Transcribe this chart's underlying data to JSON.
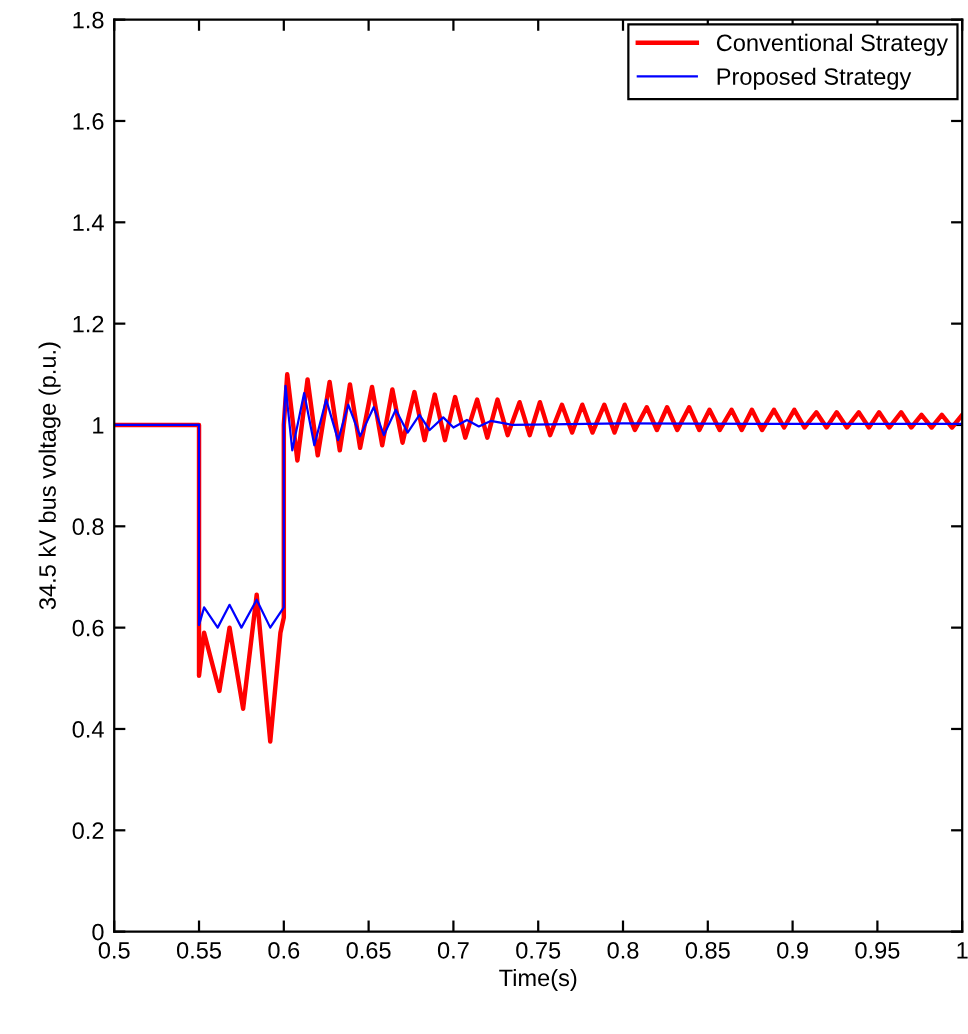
{
  "chart_data": {
    "type": "line",
    "xlabel": "Time(s)",
    "ylabel": "34.5 kV bus voltage (p.u.)",
    "xlim": [
      0.5,
      1
    ],
    "ylim": [
      0,
      1.8
    ],
    "xticks": [
      0.5,
      0.55,
      0.6,
      0.65,
      0.7,
      0.75,
      0.8,
      0.85,
      0.9,
      0.95,
      1
    ],
    "yticks": [
      0,
      0.2,
      0.4,
      0.6,
      0.8,
      1,
      1.2,
      1.4,
      1.6,
      1.8
    ],
    "grid": false,
    "legend": "top right",
    "line_style": "solid",
    "marker": "none",
    "series": [
      {
        "name": "Conventional Strategy",
        "color": "#ff0000",
        "x": [
          0.5,
          0.55,
          0.55,
          0.553,
          0.562,
          0.568,
          0.576,
          0.584,
          0.592,
          0.598,
          0.6,
          0.6,
          0.602,
          0.608,
          0.614,
          0.62,
          0.627,
          0.633,
          0.639,
          0.645,
          0.652,
          0.658,
          0.664,
          0.67,
          0.677,
          0.683,
          0.689,
          0.695,
          0.701,
          0.707,
          0.714,
          0.72,
          0.726,
          0.732,
          0.739,
          0.745,
          0.751,
          0.757,
          0.764,
          0.77,
          0.776,
          0.782,
          0.789,
          0.795,
          0.801,
          0.807,
          0.814,
          0.82,
          0.826,
          0.832,
          0.839,
          0.845,
          0.851,
          0.857,
          0.864,
          0.87,
          0.876,
          0.882,
          0.889,
          0.895,
          0.901,
          0.907,
          0.914,
          0.92,
          0.926,
          0.932,
          0.939,
          0.945,
          0.951,
          0.957,
          0.964,
          0.97,
          0.976,
          0.982,
          0.988,
          0.994,
          1.0
        ],
        "values": [
          1,
          1,
          0.505,
          0.59,
          0.475,
          0.6,
          0.44,
          0.665,
          0.375,
          0.59,
          0.62,
          1.0,
          1.1,
          0.93,
          1.09,
          0.94,
          1.085,
          0.95,
          1.08,
          0.955,
          1.075,
          0.96,
          1.07,
          0.965,
          1.065,
          0.97,
          1.06,
          0.97,
          1.055,
          0.975,
          1.05,
          0.975,
          1.05,
          0.98,
          1.045,
          0.98,
          1.045,
          0.98,
          1.04,
          0.985,
          1.04,
          0.985,
          1.04,
          0.985,
          1.04,
          0.99,
          1.035,
          0.99,
          1.035,
          0.99,
          1.035,
          0.99,
          1.03,
          0.99,
          1.03,
          0.99,
          1.03,
          0.99,
          1.03,
          0.995,
          1.03,
          0.995,
          1.025,
          0.995,
          1.025,
          0.995,
          1.025,
          0.995,
          1.025,
          0.995,
          1.025,
          0.995,
          1.02,
          0.995,
          1.02,
          0.995,
          1.02
        ]
      },
      {
        "name": "Proposed Strategy",
        "color": "#0000ff",
        "x": [
          0.5,
          0.55,
          0.55,
          0.553,
          0.561,
          0.568,
          0.575,
          0.584,
          0.592,
          0.6,
          0.6,
          0.601,
          0.605,
          0.612,
          0.618,
          0.625,
          0.632,
          0.638,
          0.645,
          0.653,
          0.659,
          0.666,
          0.673,
          0.68,
          0.686,
          0.694,
          0.7,
          0.708,
          0.715,
          0.722,
          0.735,
          0.8,
          0.9,
          1.0
        ],
        "values": [
          1,
          1,
          0.605,
          0.64,
          0.6,
          0.645,
          0.6,
          0.655,
          0.6,
          0.64,
          1.0,
          1.077,
          0.95,
          1.063,
          0.96,
          1.05,
          0.97,
          1.04,
          0.978,
          1.035,
          0.98,
          1.03,
          0.985,
          1.02,
          0.99,
          1.015,
          0.995,
          1.01,
          0.997,
          1.008,
          1.0,
          1.003,
          1.002,
          1.002
        ]
      }
    ]
  }
}
